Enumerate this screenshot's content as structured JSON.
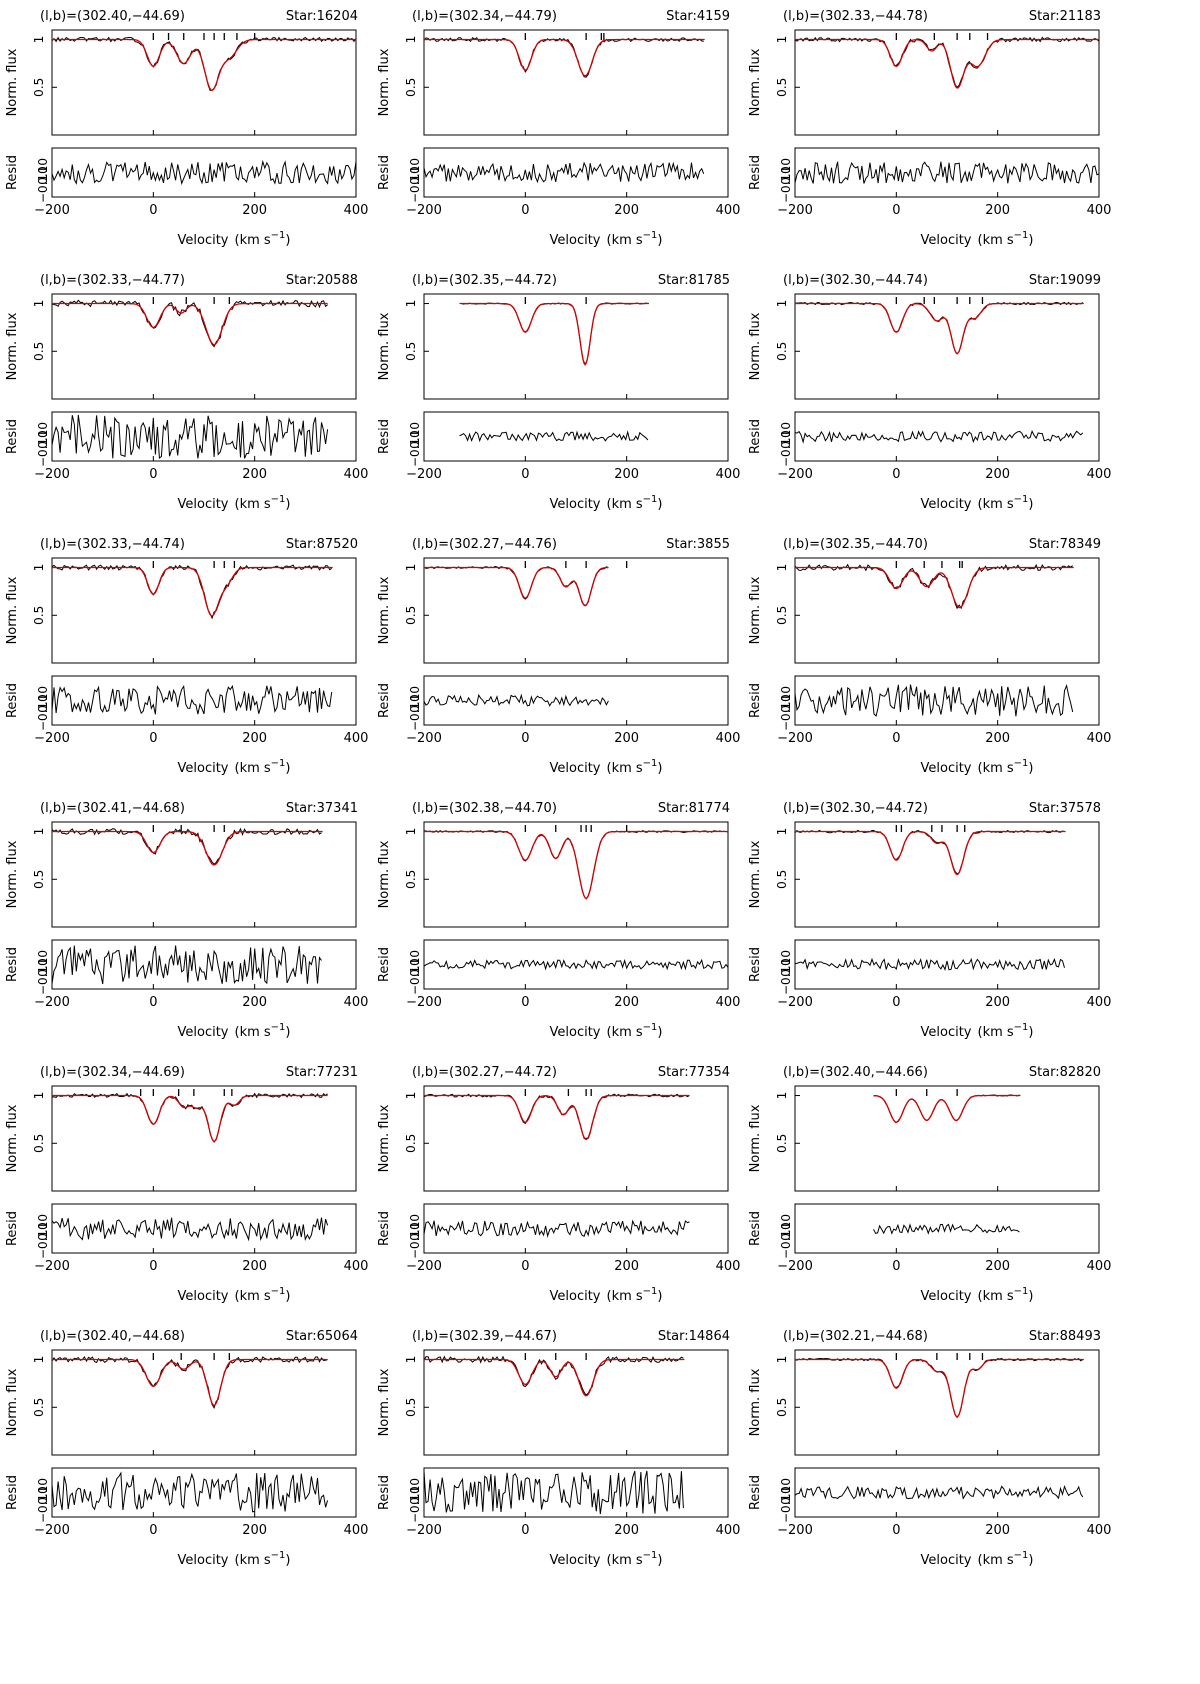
{
  "axis": {
    "y_top_label": "Norm. flux",
    "y_bottom_label": "Resid",
    "x_label": "Velocity",
    "x_unit_open": "(km s",
    "x_unit_exp": "−1",
    "x_unit_close": ")",
    "top_y_ticks": [
      "0.5",
      "1"
    ],
    "bottom_y_ticks": [
      "−0.10",
      "0.10"
    ],
    "x_ticks": [
      "−200",
      "0",
      "200",
      "400"
    ]
  },
  "colors": {
    "data": "#000000",
    "model": "#d40000"
  },
  "chart_data": [
    {
      "type": "line",
      "coords": "(l,b)=(302.40,−44.69)",
      "star": "Star:16204",
      "xlim": [
        -200,
        400
      ],
      "ylim": [
        0,
        1.1
      ],
      "resid_ylim": [
        -0.1,
        0.1
      ],
      "data_range": [
        -200,
        400
      ],
      "noise": 0.022,
      "resid_amp": 0.045,
      "components": [
        {
          "v": 0,
          "depth": 0.28,
          "width": 12
        },
        {
          "v": 60,
          "depth": 0.25,
          "width": 14
        },
        {
          "v": 115,
          "depth": 0.52,
          "width": 14
        },
        {
          "v": 150,
          "depth": 0.18,
          "width": 15
        }
      ],
      "ticks_v": [
        0,
        30,
        60,
        100,
        120,
        140,
        165,
        200
      ]
    },
    {
      "type": "line",
      "coords": "(l,b)=(302.34,−44.79)",
      "star": "Star:4159",
      "xlim": [
        -200,
        400
      ],
      "ylim": [
        0,
        1.1
      ],
      "resid_ylim": [
        -0.1,
        0.1
      ],
      "data_range": [
        -200,
        355
      ],
      "noise": 0.02,
      "resid_amp": 0.04,
      "components": [
        {
          "v": 0,
          "depth": 0.32,
          "width": 12
        },
        {
          "v": 118,
          "depth": 0.38,
          "width": 14
        }
      ],
      "ticks_v": [
        0,
        120,
        150,
        155
      ]
    },
    {
      "type": "line",
      "coords": "(l,b)=(302.33,−44.78)",
      "star": "Star:21183",
      "xlim": [
        -200,
        400
      ],
      "ylim": [
        0,
        1.1
      ],
      "resid_ylim": [
        -0.1,
        0.1
      ],
      "data_range": [
        -200,
        400
      ],
      "noise": 0.022,
      "resid_amp": 0.045,
      "components": [
        {
          "v": 0,
          "depth": 0.28,
          "width": 12
        },
        {
          "v": 70,
          "depth": 0.12,
          "width": 10
        },
        {
          "v": 120,
          "depth": 0.5,
          "width": 13
        },
        {
          "v": 160,
          "depth": 0.28,
          "width": 15
        }
      ],
      "ticks_v": [
        0,
        75,
        120,
        145,
        180
      ]
    },
    {
      "type": "line",
      "coords": "(l,b)=(302.33,−44.77)",
      "star": "Star:20588",
      "xlim": [
        -200,
        400
      ],
      "ylim": [
        0,
        1.1
      ],
      "resid_ylim": [
        -0.1,
        0.1
      ],
      "data_range": [
        -200,
        345
      ],
      "noise": 0.035,
      "resid_amp": 0.09,
      "components": [
        {
          "v": 0,
          "depth": 0.25,
          "width": 13
        },
        {
          "v": 55,
          "depth": 0.1,
          "width": 10
        },
        {
          "v": 120,
          "depth": 0.43,
          "width": 16
        }
      ],
      "ticks_v": [
        0,
        65,
        120,
        150
      ]
    },
    {
      "type": "line",
      "coords": "(l,b)=(302.35,−44.72)",
      "star": "Star:81785",
      "xlim": [
        -200,
        400
      ],
      "ylim": [
        0,
        1.1
      ],
      "resid_ylim": [
        -0.1,
        0.1
      ],
      "data_range": [
        -130,
        245
      ],
      "noise": 0.006,
      "resid_amp": 0.018,
      "components": [
        {
          "v": 0,
          "depth": 0.3,
          "width": 12
        },
        {
          "v": 118,
          "depth": 0.64,
          "width": 10
        }
      ],
      "ticks_v": [
        0,
        120
      ]
    },
    {
      "type": "line",
      "coords": "(l,b)=(302.30,−44.74)",
      "star": "Star:19099",
      "xlim": [
        -200,
        400
      ],
      "ylim": [
        0,
        1.1
      ],
      "resid_ylim": [
        -0.1,
        0.1
      ],
      "data_range": [
        -200,
        370
      ],
      "noise": 0.012,
      "resid_amp": 0.022,
      "components": [
        {
          "v": 0,
          "depth": 0.3,
          "width": 12
        },
        {
          "v": 80,
          "depth": 0.18,
          "width": 13
        },
        {
          "v": 120,
          "depth": 0.52,
          "width": 12
        },
        {
          "v": 155,
          "depth": 0.15,
          "width": 12
        }
      ],
      "ticks_v": [
        0,
        55,
        75,
        120,
        145,
        170
      ]
    },
    {
      "type": "line",
      "coords": "(l,b)=(302.33,−44.74)",
      "star": "Star:87520",
      "xlim": [
        -200,
        400
      ],
      "ylim": [
        0,
        1.1
      ],
      "resid_ylim": [
        -0.1,
        0.1
      ],
      "data_range": [
        -200,
        355
      ],
      "noise": 0.025,
      "resid_amp": 0.06,
      "components": [
        {
          "v": 0,
          "depth": 0.28,
          "width": 11
        },
        {
          "v": 115,
          "depth": 0.5,
          "width": 14
        },
        {
          "v": 145,
          "depth": 0.15,
          "width": 12
        }
      ],
      "ticks_v": [
        0,
        120,
        140,
        160
      ]
    },
    {
      "type": "line",
      "coords": "(l,b)=(302.27,−44.76)",
      "star": "Star:3855",
      "xlim": [
        -200,
        400
      ],
      "ylim": [
        0,
        1.1
      ],
      "resid_ylim": [
        -0.1,
        0.1
      ],
      "data_range": [
        -200,
        165
      ],
      "noise": 0.012,
      "resid_amp": 0.022,
      "components": [
        {
          "v": 0,
          "depth": 0.32,
          "width": 12
        },
        {
          "v": 80,
          "depth": 0.2,
          "width": 11
        },
        {
          "v": 118,
          "depth": 0.4,
          "width": 12
        }
      ],
      "ticks_v": [
        0,
        80,
        120,
        200
      ]
    },
    {
      "type": "line",
      "coords": "(l,b)=(302.35,−44.70)",
      "star": "Star:78349",
      "xlim": [
        -200,
        400
      ],
      "ylim": [
        0,
        1.1
      ],
      "resid_ylim": [
        -0.1,
        0.1
      ],
      "data_range": [
        -200,
        350
      ],
      "noise": 0.03,
      "resid_amp": 0.065,
      "components": [
        {
          "v": 0,
          "depth": 0.22,
          "width": 13
        },
        {
          "v": 60,
          "depth": 0.2,
          "width": 14
        },
        {
          "v": 125,
          "depth": 0.42,
          "width": 16
        }
      ],
      "ticks_v": [
        0,
        55,
        90,
        125,
        130
      ]
    },
    {
      "type": "line",
      "coords": "(l,b)=(302.41,−44.68)",
      "star": "Star:37341",
      "xlim": [
        -200,
        400
      ],
      "ylim": [
        0,
        1.1
      ],
      "resid_ylim": [
        -0.1,
        0.1
      ],
      "data_range": [
        -200,
        335
      ],
      "noise": 0.03,
      "resid_amp": 0.08,
      "components": [
        {
          "v": 0,
          "depth": 0.22,
          "width": 13
        },
        {
          "v": 120,
          "depth": 0.35,
          "width": 16
        }
      ],
      "ticks_v": [
        0,
        55,
        120,
        140
      ]
    },
    {
      "type": "line",
      "coords": "(l,b)=(302.38,−44.70)",
      "star": "Star:81774",
      "xlim": [
        -200,
        400
      ],
      "ylim": [
        0,
        1.1
      ],
      "resid_ylim": [
        -0.1,
        0.1
      ],
      "data_range": [
        -200,
        400
      ],
      "noise": 0.01,
      "resid_amp": 0.018,
      "components": [
        {
          "v": 0,
          "depth": 0.3,
          "width": 13
        },
        {
          "v": 60,
          "depth": 0.28,
          "width": 12
        },
        {
          "v": 120,
          "depth": 0.7,
          "width": 15
        }
      ],
      "ticks_v": [
        0,
        60,
        110,
        120,
        130,
        200
      ]
    },
    {
      "type": "line",
      "coords": "(l,b)=(302.30,−44.72)",
      "star": "Star:37578",
      "xlim": [
        -200,
        400
      ],
      "ylim": [
        0,
        1.1
      ],
      "resid_ylim": [
        -0.1,
        0.1
      ],
      "data_range": [
        -200,
        335
      ],
      "noise": 0.012,
      "resid_amp": 0.022,
      "components": [
        {
          "v": 0,
          "depth": 0.3,
          "width": 12
        },
        {
          "v": 80,
          "depth": 0.12,
          "width": 11
        },
        {
          "v": 120,
          "depth": 0.45,
          "width": 13
        }
      ],
      "ticks_v": [
        0,
        10,
        70,
        90,
        120,
        135
      ]
    },
    {
      "type": "line",
      "coords": "(l,b)=(302.34,−44.69)",
      "star": "Star:77231",
      "xlim": [
        -200,
        400
      ],
      "ylim": [
        0,
        1.1
      ],
      "resid_ylim": [
        -0.1,
        0.1
      ],
      "data_range": [
        -200,
        345
      ],
      "noise": 0.02,
      "resid_amp": 0.045,
      "components": [
        {
          "v": 0,
          "depth": 0.3,
          "width": 12
        },
        {
          "v": 60,
          "depth": 0.12,
          "width": 10
        },
        {
          "v": 85,
          "depth": 0.12,
          "width": 10
        },
        {
          "v": 120,
          "depth": 0.48,
          "width": 12
        },
        {
          "v": 160,
          "depth": 0.1,
          "width": 10
        }
      ],
      "ticks_v": [
        -25,
        0,
        50,
        80,
        140,
        155
      ]
    },
    {
      "type": "line",
      "coords": "(l,b)=(302.27,−44.72)",
      "star": "Star:77354",
      "xlim": [
        -200,
        400
      ],
      "ylim": [
        0,
        1.1
      ],
      "resid_ylim": [
        -0.1,
        0.1
      ],
      "data_range": [
        -200,
        325
      ],
      "noise": 0.015,
      "resid_amp": 0.032,
      "components": [
        {
          "v": 0,
          "depth": 0.28,
          "width": 12
        },
        {
          "v": 75,
          "depth": 0.2,
          "width": 11
        },
        {
          "v": 120,
          "depth": 0.46,
          "width": 13
        }
      ],
      "ticks_v": [
        0,
        85,
        120,
        130
      ]
    },
    {
      "type": "line",
      "coords": "(l,b)=(302.40,−44.66)",
      "star": "Star:82820",
      "xlim": [
        -200,
        400
      ],
      "ylim": [
        0,
        1.1
      ],
      "resid_ylim": [
        -0.1,
        0.1
      ],
      "data_range": [
        -45,
        245
      ],
      "noise": 0.006,
      "resid_amp": 0.02,
      "components": [
        {
          "v": 0,
          "depth": 0.28,
          "width": 13
        },
        {
          "v": 60,
          "depth": 0.26,
          "width": 13
        },
        {
          "v": 118,
          "depth": 0.26,
          "width": 13
        }
      ],
      "ticks_v": [
        0,
        60,
        120
      ]
    },
    {
      "type": "line",
      "coords": "(l,b)=(302.40,−44.68)",
      "star": "Star:65064",
      "xlim": [
        -200,
        400
      ],
      "ylim": [
        0,
        1.1
      ],
      "resid_ylim": [
        -0.1,
        0.1
      ],
      "data_range": [
        -200,
        345
      ],
      "noise": 0.03,
      "resid_amp": 0.08,
      "components": [
        {
          "v": 0,
          "depth": 0.28,
          "width": 14
        },
        {
          "v": 60,
          "depth": 0.1,
          "width": 12
        },
        {
          "v": 120,
          "depth": 0.48,
          "width": 13
        }
      ],
      "ticks_v": [
        0,
        55,
        120,
        150
      ]
    },
    {
      "type": "line",
      "coords": "(l,b)=(302.39,−44.67)",
      "star": "Star:14864",
      "xlim": [
        -200,
        400
      ],
      "ylim": [
        0,
        1.1
      ],
      "resid_ylim": [
        -0.1,
        0.1
      ],
      "data_range": [
        -200,
        315
      ],
      "noise": 0.03,
      "resid_amp": 0.09,
      "components": [
        {
          "v": 0,
          "depth": 0.26,
          "width": 13
        },
        {
          "v": 60,
          "depth": 0.18,
          "width": 11
        },
        {
          "v": 120,
          "depth": 0.38,
          "width": 14
        }
      ],
      "ticks_v": [
        0,
        60,
        120
      ]
    },
    {
      "type": "line",
      "coords": "(l,b)=(302.21,−44.68)",
      "star": "Star:88493",
      "xlim": [
        -200,
        400
      ],
      "ylim": [
        0,
        1.1
      ],
      "resid_ylim": [
        -0.1,
        0.1
      ],
      "data_range": [
        -200,
        370
      ],
      "noise": 0.012,
      "resid_amp": 0.025,
      "components": [
        {
          "v": 0,
          "depth": 0.3,
          "width": 12
        },
        {
          "v": 80,
          "depth": 0.12,
          "width": 12
        },
        {
          "v": 120,
          "depth": 0.6,
          "width": 13
        },
        {
          "v": 160,
          "depth": 0.1,
          "width": 10
        }
      ],
      "ticks_v": [
        0,
        80,
        120,
        145,
        170
      ]
    }
  ]
}
